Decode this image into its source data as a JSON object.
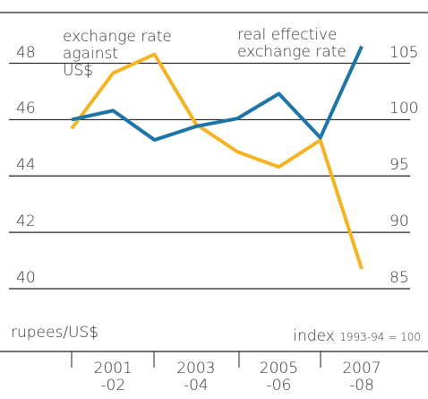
{
  "chart_data": {
    "type": "line",
    "categories": [
      null,
      "2001\n-02",
      null,
      "2003\n-04",
      null,
      "2005\n-06",
      null,
      "2007\n-08"
    ],
    "series": [
      {
        "name": "exchange rate\nagainst\nUS$",
        "color": "#f5b324",
        "values": [
          45.68,
          47.65,
          48.32,
          45.84,
          44.86,
          44.32,
          45.27,
          40.7
        ]
      },
      {
        "name": "real effective\nexchange rate",
        "color": "#1d74a6",
        "axis": "y2",
        "values": [
          100,
          100.8,
          98.2,
          99.4,
          100.1,
          102.3,
          98.4,
          106.5
        ]
      }
    ],
    "ylabel": "rupees/US$",
    "y2label": "index",
    "y2label_note": "1993-94 = 100",
    "ylim": [
      40,
      49.8
    ],
    "yticks": [
      40,
      42,
      44,
      46,
      48
    ],
    "y2lim": [
      85,
      109.5
    ],
    "y2ticks": [
      85,
      90,
      95,
      100,
      105
    ],
    "grid": true
  }
}
